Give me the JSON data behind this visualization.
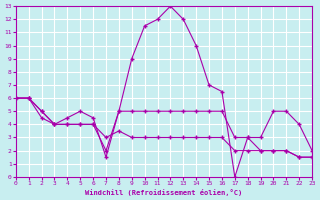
{
  "title": "",
  "xlabel": "Windchill (Refroidissement éolien,°C)",
  "ylabel": "",
  "bg_color": "#c8eef0",
  "grid_color": "#ffffff",
  "line_color": "#aa00aa",
  "xlim": [
    0,
    23
  ],
  "ylim": [
    0,
    13
  ],
  "xticks": [
    0,
    1,
    2,
    3,
    4,
    5,
    6,
    7,
    8,
    9,
    10,
    11,
    12,
    13,
    14,
    15,
    16,
    17,
    18,
    19,
    20,
    21,
    22,
    23
  ],
  "yticks": [
    0,
    1,
    2,
    3,
    4,
    5,
    6,
    7,
    8,
    9,
    10,
    11,
    12,
    13
  ],
  "line1_x": [
    0,
    1,
    2,
    3,
    4,
    5,
    6,
    7,
    8,
    9,
    10,
    11,
    12,
    13,
    14,
    15,
    16,
    17,
    18,
    19,
    20,
    21,
    22,
    23
  ],
  "line1_y": [
    6,
    6,
    5,
    4,
    4,
    4,
    4,
    2,
    5,
    9,
    11.5,
    12,
    13,
    12,
    10,
    7,
    6.5,
    0,
    3,
    3,
    5,
    5,
    4,
    2
  ],
  "line2_x": [
    0,
    1,
    2,
    3,
    4,
    5,
    6,
    7,
    8,
    9,
    10,
    11,
    12,
    13,
    14,
    15,
    16,
    17,
    18,
    19,
    20,
    21,
    22,
    23
  ],
  "line2_y": [
    6,
    6,
    5,
    4,
    4.5,
    5,
    4.5,
    1.5,
    5,
    5,
    5,
    5,
    5,
    5,
    5,
    5,
    5,
    3,
    3,
    2,
    2,
    2,
    1.5,
    1.5
  ],
  "line3_x": [
    0,
    1,
    2,
    3,
    4,
    5,
    6,
    7,
    8,
    9,
    10,
    11,
    12,
    13,
    14,
    15,
    16,
    17,
    18,
    19,
    20,
    21,
    22,
    23
  ],
  "line3_y": [
    6,
    6,
    4.5,
    4,
    4,
    4,
    4,
    3,
    3.5,
    3,
    3,
    3,
    3,
    3,
    3,
    3,
    3,
    2,
    2,
    2,
    2,
    2,
    1.5,
    1.5
  ]
}
